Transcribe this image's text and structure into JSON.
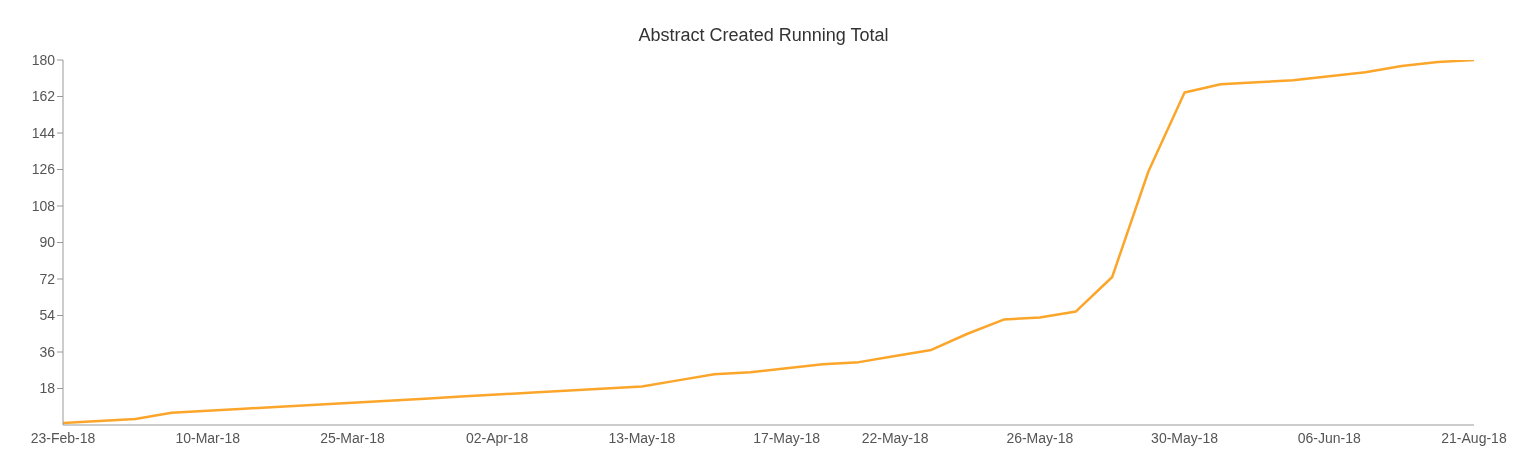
{
  "chart_data": {
    "type": "line",
    "title": "Abstract Created Running Total",
    "categories": [
      "23-Feb-18",
      null,
      null,
      null,
      "10-Mar-18",
      null,
      null,
      null,
      "25-Mar-18",
      null,
      null,
      null,
      "02-Apr-18",
      null,
      null,
      null,
      "13-May-18",
      null,
      null,
      null,
      "17-May-18",
      null,
      null,
      "22-May-18",
      null,
      null,
      null,
      "26-May-18",
      null,
      null,
      null,
      "30-May-18",
      null,
      null,
      null,
      "06-Jun-18",
      null,
      null,
      null,
      "21-Aug-18"
    ],
    "series": [
      {
        "color": "#fba62a",
        "values": [
          1,
          2,
          3,
          6,
          7,
          8,
          9,
          10,
          11,
          12,
          13,
          14,
          15,
          16,
          17,
          18,
          19,
          22,
          25,
          26,
          28,
          30,
          31,
          34,
          37,
          45,
          52,
          53,
          56,
          73,
          125,
          164,
          168,
          169,
          170,
          172,
          174,
          177,
          179,
          180
        ]
      }
    ],
    "ylim": [
      0,
      180
    ],
    "yticks": [
      18,
      36,
      54,
      72,
      90,
      108,
      126,
      144,
      162,
      180
    ],
    "grid": false,
    "legend": false,
    "marker": "none",
    "line_style": "solid"
  }
}
